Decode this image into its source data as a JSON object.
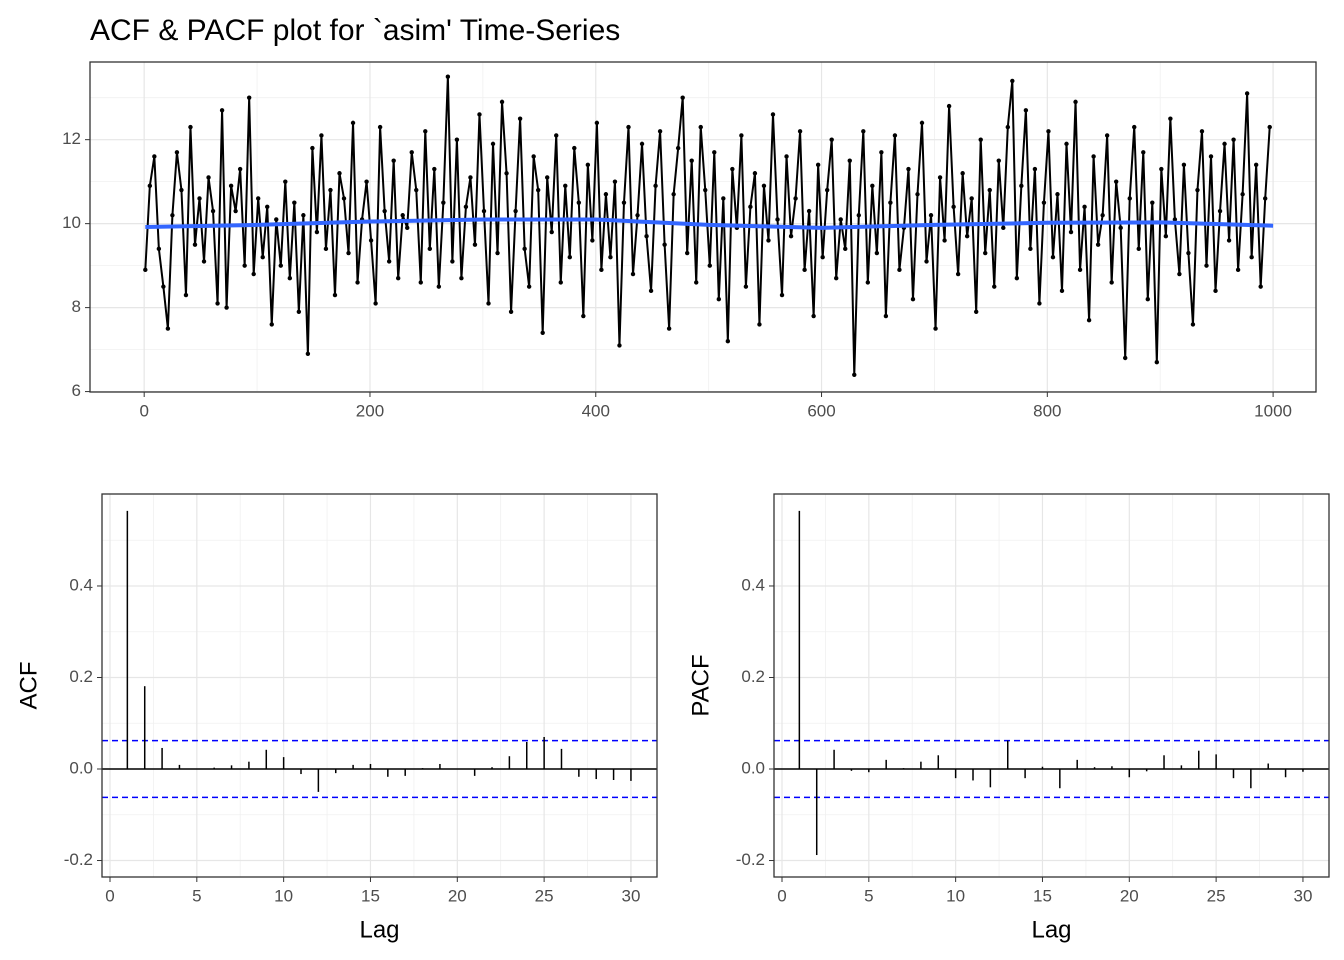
{
  "chart_data": [
    {
      "type": "line",
      "title": "ACF & PACF plot for `asim' Time-Series",
      "xlim": [
        -48,
        1038
      ],
      "ylim": [
        5.99,
        13.85
      ],
      "xticks": [
        0,
        200,
        400,
        600,
        800,
        1000
      ],
      "yticks": [
        6,
        8,
        10,
        12
      ],
      "xminor": [
        100,
        300,
        500,
        700,
        900
      ],
      "yminor": [
        7,
        9,
        11,
        13
      ],
      "grid": true,
      "series": [
        {
          "color": "#000000",
          "points": true,
          "x": [
            1,
            5,
            9,
            13,
            17,
            21,
            25,
            29,
            33,
            37,
            41,
            45,
            49,
            53,
            57,
            61,
            65,
            69,
            73,
            77,
            81,
            85,
            89,
            93,
            97,
            101,
            105,
            109,
            113,
            117,
            121,
            125,
            129,
            133,
            137,
            141,
            145,
            149,
            153,
            157,
            161,
            165,
            169,
            173,
            177,
            181,
            185,
            189,
            193,
            197,
            201,
            205,
            209,
            213,
            217,
            221,
            225,
            229,
            233,
            237,
            241,
            245,
            249,
            253,
            257,
            261,
            265,
            269,
            273,
            277,
            281,
            285,
            289,
            293,
            297,
            301,
            305,
            309,
            313,
            317,
            321,
            325,
            329,
            333,
            337,
            341,
            345,
            349,
            353,
            357,
            361,
            365,
            369,
            373,
            377,
            381,
            385,
            389,
            393,
            397,
            401,
            405,
            409,
            413,
            417,
            421,
            425,
            429,
            433,
            437,
            441,
            445,
            449,
            453,
            457,
            461,
            465,
            469,
            473,
            477,
            481,
            485,
            489,
            493,
            497,
            501,
            505,
            509,
            513,
            517,
            521,
            525,
            529,
            533,
            537,
            541,
            545,
            549,
            553,
            557,
            561,
            565,
            569,
            573,
            577,
            581,
            585,
            589,
            593,
            597,
            601,
            605,
            609,
            613,
            617,
            621,
            625,
            629,
            633,
            637,
            641,
            645,
            649,
            653,
            657,
            661,
            665,
            669,
            673,
            677,
            681,
            685,
            689,
            693,
            697,
            701,
            705,
            709,
            713,
            717,
            721,
            725,
            729,
            733,
            737,
            741,
            745,
            749,
            753,
            757,
            761,
            765,
            769,
            773,
            777,
            781,
            785,
            789,
            793,
            797,
            801,
            805,
            809,
            813,
            817,
            821,
            825,
            829,
            833,
            837,
            841,
            845,
            849,
            853,
            857,
            861,
            865,
            869,
            873,
            877,
            881,
            885,
            889,
            893,
            897,
            901,
            905,
            909,
            913,
            917,
            921,
            925,
            929,
            933,
            937,
            941,
            945,
            949,
            953,
            957,
            961,
            965,
            969,
            973,
            977,
            981,
            985,
            989,
            993,
            997
          ],
          "values": [
            8.9,
            10.9,
            11.6,
            9.4,
            8.5,
            7.5,
            10.2,
            11.7,
            10.8,
            8.3,
            12.3,
            9.5,
            10.6,
            9.1,
            11.1,
            10.3,
            8.1,
            12.7,
            8.0,
            10.9,
            10.3,
            11.3,
            9.0,
            13.0,
            8.8,
            10.6,
            9.2,
            10.4,
            7.6,
            10.1,
            9.0,
            11.0,
            8.7,
            10.5,
            7.9,
            10.2,
            6.9,
            11.8,
            9.8,
            12.1,
            9.4,
            10.8,
            8.3,
            11.2,
            10.6,
            9.3,
            12.4,
            8.6,
            10.1,
            11.0,
            9.6,
            8.1,
            12.3,
            10.3,
            9.1,
            11.5,
            8.7,
            10.2,
            9.9,
            11.7,
            10.8,
            8.6,
            12.2,
            9.4,
            11.3,
            8.5,
            10.5,
            13.5,
            9.1,
            12.0,
            8.7,
            10.4,
            11.1,
            9.5,
            12.6,
            10.3,
            8.1,
            11.9,
            9.3,
            12.9,
            11.2,
            7.9,
            10.3,
            12.5,
            9.4,
            8.5,
            11.6,
            10.8,
            7.4,
            11.1,
            9.8,
            12.1,
            8.6,
            10.9,
            9.2,
            11.8,
            10.5,
            7.8,
            11.4,
            9.6,
            12.4,
            8.9,
            10.7,
            9.2,
            11.0,
            7.1,
            10.5,
            12.3,
            8.8,
            10.2,
            11.9,
            9.7,
            8.4,
            10.9,
            12.2,
            9.5,
            7.5,
            10.7,
            11.8,
            13.0,
            9.3,
            11.5,
            8.6,
            12.3,
            10.8,
            9.0,
            11.7,
            8.2,
            10.6,
            7.2,
            11.3,
            9.9,
            12.1,
            8.5,
            10.4,
            11.2,
            7.6,
            10.9,
            9.6,
            12.6,
            10.1,
            8.3,
            11.6,
            9.7,
            10.6,
            12.2,
            8.9,
            10.3,
            7.8,
            11.4,
            9.2,
            10.8,
            12.0,
            8.7,
            10.1,
            9.4,
            11.5,
            6.4,
            10.2,
            12.2,
            8.6,
            10.9,
            9.3,
            11.7,
            7.8,
            10.5,
            12.1,
            8.9,
            9.9,
            11.3,
            8.2,
            10.7,
            12.4,
            9.1,
            10.2,
            7.5,
            11.1,
            9.6,
            12.8,
            10.4,
            8.8,
            11.2,
            9.7,
            10.6,
            7.9,
            12.0,
            9.3,
            10.8,
            8.5,
            11.5,
            9.9,
            12.3,
            13.4,
            8.7,
            10.9,
            12.7,
            9.4,
            11.3,
            8.1,
            10.5,
            12.2,
            9.2,
            10.7,
            8.4,
            11.9,
            9.8,
            12.9,
            8.9,
            10.4,
            7.7,
            11.6,
            9.5,
            10.2,
            12.1,
            8.6,
            11.0,
            9.9,
            6.8,
            10.6,
            12.3,
            9.4,
            11.7,
            8.2,
            10.5,
            6.7,
            11.3,
            9.7,
            12.5,
            10.1,
            8.8,
            11.4,
            9.3,
            7.6,
            10.8,
            12.2,
            9.0,
            11.6,
            8.4,
            10.3,
            11.9,
            9.6,
            12.0,
            8.9,
            10.7,
            13.1,
            9.2,
            11.4,
            8.5,
            10.6,
            12.3
          ]
        },
        {
          "color": "#3366ff",
          "points": false,
          "x": [
            1,
            100,
            200,
            300,
            400,
            500,
            600,
            700,
            800,
            900,
            1000
          ],
          "values": [
            9.92,
            9.97,
            10.05,
            10.1,
            10.1,
            9.97,
            9.9,
            9.97,
            10.02,
            10.03,
            9.95
          ]
        }
      ]
    },
    {
      "type": "stem",
      "y_label": "ACF",
      "x_label": "Lag",
      "xlim": [
        -0.46,
        31.5
      ],
      "ylim": [
        -0.236,
        0.601
      ],
      "xticks": [
        0,
        5,
        10,
        15,
        20,
        25,
        30
      ],
      "yticks": [
        {
          "value": -0.2,
          "label": "-0.2"
        },
        {
          "value": 0,
          "label": "0.0"
        },
        {
          "value": 0.2,
          "label": "0.2"
        },
        {
          "value": 0.4,
          "label": "0.4"
        }
      ],
      "xminor": [
        2.5,
        7.5,
        12.5,
        17.5,
        22.5,
        27.5
      ],
      "yminor": [
        -0.1,
        0.1,
        0.3,
        0.5
      ],
      "grid": true,
      "x": [
        1,
        2,
        3,
        4,
        5,
        6,
        7,
        8,
        9,
        10,
        11,
        12,
        13,
        14,
        15,
        16,
        17,
        18,
        19,
        20,
        21,
        22,
        23,
        24,
        25,
        26,
        27,
        28,
        29,
        30
      ],
      "values": [
        0.564,
        0.181,
        0.046,
        0.009,
        0.001,
        0.003,
        0.008,
        0.016,
        0.042,
        0.026,
        -0.011,
        -0.05,
        -0.009,
        0.009,
        0.011,
        -0.017,
        -0.015,
        0.002,
        0.011,
        0.001,
        -0.015,
        0.004,
        0.028,
        0.059,
        0.07,
        0.044,
        -0.017,
        -0.022,
        -0.024,
        -0.026
      ],
      "color": "#000000",
      "zero_line": true,
      "hlines": [
        0.062,
        -0.062
      ],
      "hline_color": "#0000ff"
    },
    {
      "type": "stem",
      "y_label": "PACF",
      "x_label": "Lag",
      "xlim": [
        -0.46,
        31.5
      ],
      "ylim": [
        -0.236,
        0.601
      ],
      "xticks": [
        0,
        5,
        10,
        15,
        20,
        25,
        30
      ],
      "yticks": [
        {
          "value": -0.2,
          "label": "-0.2"
        },
        {
          "value": 0,
          "label": "0.0"
        },
        {
          "value": 0.2,
          "label": "0.2"
        },
        {
          "value": 0.4,
          "label": "0.4"
        }
      ],
      "xminor": [
        2.5,
        7.5,
        12.5,
        17.5,
        22.5,
        27.5
      ],
      "yminor": [
        -0.1,
        0.1,
        0.3,
        0.5
      ],
      "grid": true,
      "x": [
        1,
        2,
        3,
        4,
        5,
        6,
        7,
        8,
        9,
        10,
        11,
        12,
        13,
        14,
        15,
        16,
        17,
        18,
        19,
        20,
        21,
        22,
        23,
        24,
        25,
        26,
        27,
        28,
        29,
        30
      ],
      "values": [
        0.564,
        -0.188,
        0.042,
        -0.004,
        -0.007,
        0.02,
        0.002,
        0.016,
        0.03,
        -0.02,
        -0.025,
        -0.04,
        0.062,
        -0.02,
        0.005,
        -0.042,
        0.02,
        0.004,
        0.006,
        -0.018,
        -0.005,
        0.03,
        0.008,
        0.04,
        0.032,
        -0.02,
        -0.042,
        0.012,
        -0.018,
        -0.006
      ],
      "color": "#000000",
      "zero_line": true,
      "hlines": [
        0.062,
        -0.062
      ],
      "hline_color": "#0000ff"
    }
  ]
}
